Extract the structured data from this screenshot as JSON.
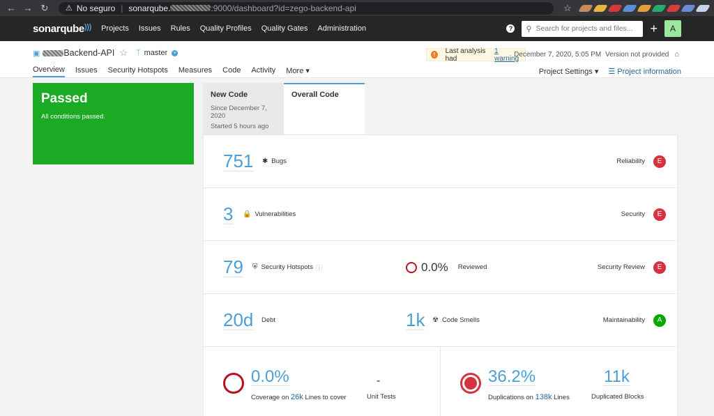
{
  "browser": {
    "insecure_label": "No seguro",
    "url_host": "sonarqube.",
    "url_rest": ":9000/dashboard?id=zego-backend-api"
  },
  "topnav": {
    "logo": "sonarqube",
    "items": [
      "Projects",
      "Issues",
      "Rules",
      "Quality Profiles",
      "Quality Gates",
      "Administration"
    ],
    "search_placeholder": "Search for projects and files...",
    "avatar": "A"
  },
  "project": {
    "name": "Backend-API",
    "branch": "master",
    "warning_text": "Last analysis had",
    "warning_link": "1 warning",
    "analysis_date": "December 7, 2020, 5:05 PM",
    "version": "Version not provided",
    "tabs": [
      "Overview",
      "Issues",
      "Security Hotspots",
      "Measures",
      "Code",
      "Activity",
      "More"
    ],
    "settings": "Project Settings",
    "info": "Project information"
  },
  "gate": {
    "status": "Passed",
    "conditions": "All conditions passed."
  },
  "code_tabs": {
    "new_title": "New Code",
    "new_since": "Since December 7, 2020",
    "new_started": "Started 5 hours ago",
    "overall_title": "Overall Code"
  },
  "metrics": {
    "bugs": {
      "value": "751",
      "label": "Bugs",
      "rating_name": "Reliability",
      "rating": "E"
    },
    "vulns": {
      "value": "3",
      "label": "Vulnerabilities",
      "rating_name": "Security",
      "rating": "E"
    },
    "hotspots": {
      "value": "79",
      "label": "Security Hotspots",
      "reviewed": "0.0%",
      "reviewed_label": "Reviewed",
      "rating_name": "Security Review",
      "rating": "E"
    },
    "debt": {
      "value": "20d",
      "label": "Debt",
      "smells": "1k",
      "smells_label": "Code Smells",
      "rating_name": "Maintainability",
      "rating": "A"
    },
    "coverage": {
      "value": "0.0%",
      "caption_pre": "Coverage on",
      "lines": "26k",
      "caption_post": "Lines to cover",
      "unit_tests": "-",
      "unit_tests_label": "Unit Tests"
    },
    "duplications": {
      "value": "36.2%",
      "caption_pre": "Duplications on",
      "lines": "138k",
      "caption_post": "Lines",
      "blocks": "11k",
      "blocks_label": "Duplicated Blocks"
    }
  },
  "colors": {
    "passed": "#1baa24",
    "rating_e": "#d4333f",
    "rating_a": "#00aa00",
    "link": "#4b9fd5"
  }
}
